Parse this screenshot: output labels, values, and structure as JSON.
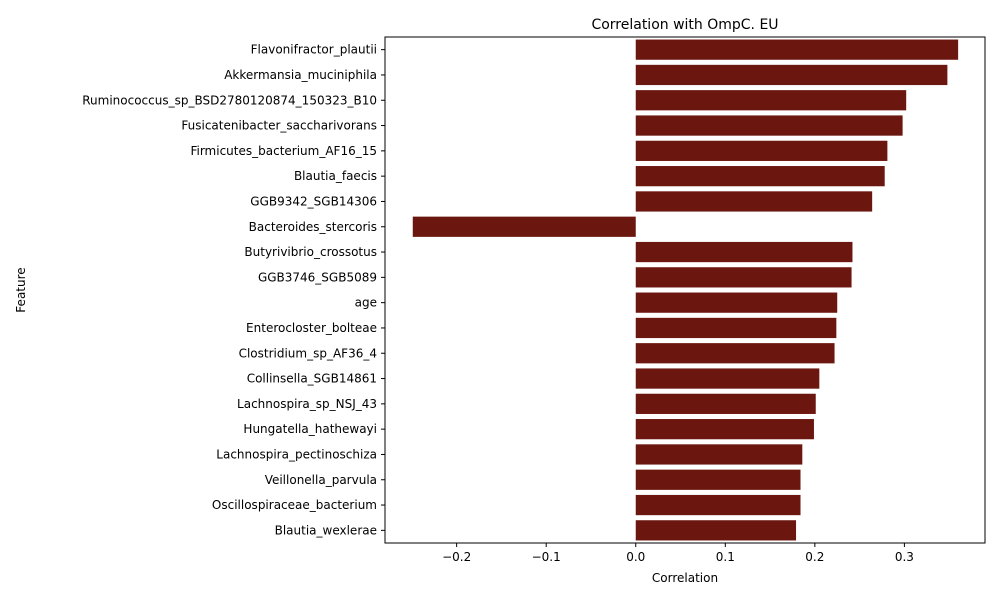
{
  "chart_data": {
    "type": "bar",
    "orientation": "horizontal",
    "title": "Correlation with OmpC. EU",
    "xlabel": "Correlation",
    "ylabel": "Feature",
    "bar_color": "#6b1710",
    "xlim": [
      -0.28,
      0.39
    ],
    "xticks": [
      -0.2,
      -0.1,
      0.0,
      0.1,
      0.2,
      0.3
    ],
    "xtick_labels": [
      "−0.2",
      "−0.1",
      "0.0",
      "0.1",
      "0.2",
      "0.3"
    ],
    "grid": false,
    "categories": [
      "Flavonifractor_plautii",
      "Akkermansia_muciniphila",
      "Ruminococcus_sp_BSD2780120874_150323_B10",
      "Fusicatenibacter_saccharivorans",
      "Firmicutes_bacterium_AF16_15",
      "Blautia_faecis",
      "GGB9342_SGB14306",
      "Bacteroides_stercoris",
      "Butyrivibrio_crossotus",
      "GGB3746_SGB5089",
      "age",
      "Enterocloster_bolteae",
      "Clostridium_sp_AF36_4",
      "Collinsella_SGB14861",
      "Lachnospira_sp_NSJ_43",
      "Hungatella_hathewayi",
      "Lachnospira_pectinoschiza",
      "Veillonella_parvula",
      "Oscillospiraceae_bacterium",
      "Blautia_wexlerae"
    ],
    "values": [
      0.36,
      0.348,
      0.302,
      0.298,
      0.281,
      0.278,
      0.264,
      -0.249,
      0.242,
      0.241,
      0.225,
      0.224,
      0.222,
      0.205,
      0.201,
      0.199,
      0.186,
      0.184,
      0.184,
      0.179
    ]
  }
}
